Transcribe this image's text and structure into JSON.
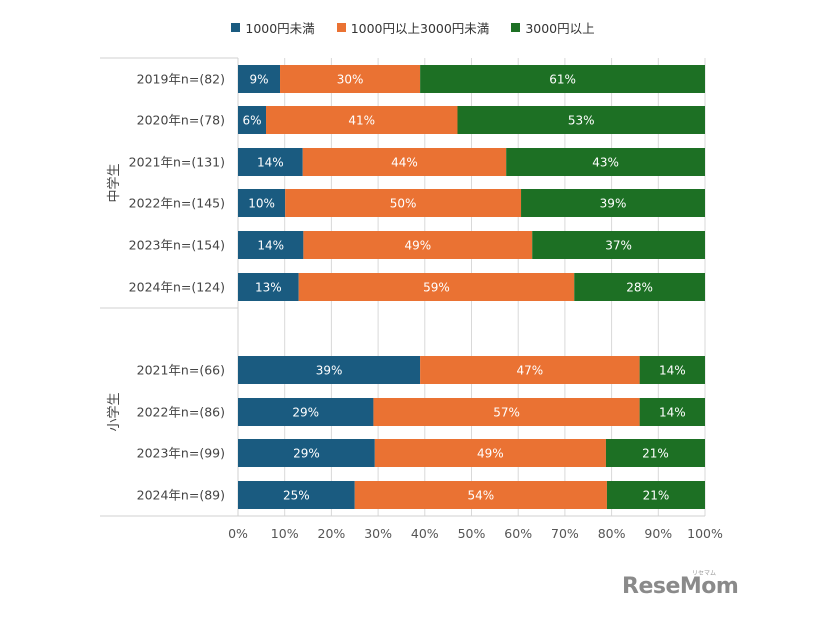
{
  "legend": [
    {
      "name": "1000円未満",
      "color": "#1a5b80"
    },
    {
      "name": "1000円以上3000円未満",
      "color": "#ea7233"
    },
    {
      "name": "3000円以上",
      "color": "#1d7024"
    }
  ],
  "watermark": {
    "main": "ReseMom",
    "sub": "リセマム"
  },
  "chart_data": {
    "type": "bar",
    "orientation": "horizontal",
    "stacked": "percent",
    "series_names": [
      "1000円未満",
      "1000円以上3000円未満",
      "3000円以上"
    ],
    "groups": [
      {
        "name": "中学生",
        "rows": [
          {
            "label": "2019年n=(82)",
            "values": [
              9,
              30,
              61
            ]
          },
          {
            "label": "2020年n=(78)",
            "values": [
              6,
              41,
              53
            ]
          },
          {
            "label": "2021年n=(131)",
            "values": [
              14,
              44,
              43
            ]
          },
          {
            "label": "2022年n=(145)",
            "values": [
              10,
              50,
              39
            ]
          },
          {
            "label": "2023年n=(154)",
            "values": [
              14,
              49,
              37
            ]
          },
          {
            "label": "2024年n=(124)",
            "values": [
              13,
              59,
              28
            ]
          }
        ]
      },
      {
        "name": "小学生",
        "rows": [
          {
            "label": "2021年n=(66)",
            "values": [
              39,
              47,
              14
            ]
          },
          {
            "label": "2022年n=(86)",
            "values": [
              29,
              57,
              14
            ]
          },
          {
            "label": "2023年n=(99)",
            "values": [
              29,
              49,
              21
            ]
          },
          {
            "label": "2024年n=(89)",
            "values": [
              25,
              54,
              21
            ]
          }
        ]
      }
    ],
    "x_ticks": [
      "0%",
      "10%",
      "20%",
      "30%",
      "40%",
      "50%",
      "60%",
      "70%",
      "80%",
      "90%",
      "100%"
    ],
    "xlim": [
      0,
      100
    ],
    "grid": true,
    "legend_position": "top"
  }
}
